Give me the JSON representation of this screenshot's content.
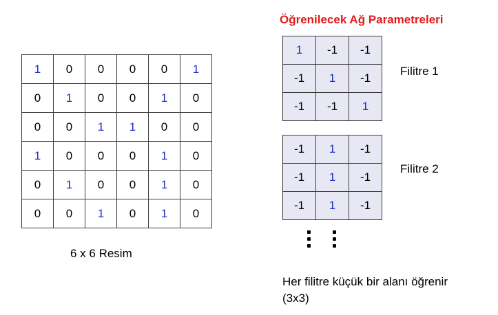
{
  "title": "Öğrenilecek Ağ Parametreleri",
  "image": {
    "caption": "6 x 6 Resim",
    "rows": [
      [
        "1",
        "0",
        "0",
        "0",
        "0",
        "1"
      ],
      [
        "0",
        "1",
        "0",
        "0",
        "1",
        "0"
      ],
      [
        "0",
        "0",
        "1",
        "1",
        "0",
        "0"
      ],
      [
        "1",
        "0",
        "0",
        "0",
        "1",
        "0"
      ],
      [
        "0",
        "1",
        "0",
        "0",
        "1",
        "0"
      ],
      [
        "0",
        "0",
        "1",
        "0",
        "1",
        "0"
      ]
    ]
  },
  "filters": [
    {
      "label": "Filitre 1",
      "rows": [
        [
          "1",
          "-1",
          "-1"
        ],
        [
          "-1",
          "1",
          "-1"
        ],
        [
          "-1",
          "-1",
          "1"
        ]
      ]
    },
    {
      "label": "Filitre 2",
      "rows": [
        [
          "-1",
          "1",
          "-1"
        ],
        [
          "-1",
          "1",
          "-1"
        ],
        [
          "-1",
          "1",
          "-1"
        ]
      ]
    }
  ],
  "note": {
    "line1": "Her filitre küçük bir alanı öğrenir",
    "line2": "(3x3)"
  },
  "colors": {
    "title": "#e01b1b",
    "one": "#1f2fc2",
    "filter_fill": "#e8e8f4"
  }
}
